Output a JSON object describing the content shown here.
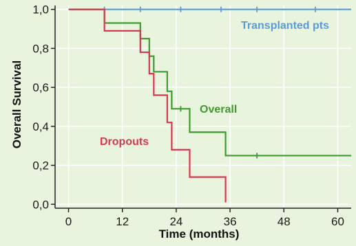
{
  "chart_data": {
    "type": "line",
    "step": true,
    "xlabel": "Time (months)",
    "ylabel": "Overall Survival",
    "xlim": [
      -3,
      63
    ],
    "ylim": [
      -0.02,
      1.02
    ],
    "xticks": [
      0,
      12,
      24,
      36,
      48,
      60
    ],
    "xtick_labels": [
      "0",
      "12",
      "24",
      "36",
      "48",
      "60"
    ],
    "yticks": [
      0.0,
      0.2,
      0.4,
      0.6,
      0.8,
      1.0
    ],
    "ytick_labels": [
      "0,0",
      "0,2",
      "0,4",
      "0,6",
      "0,8",
      "1,0"
    ],
    "grid": true,
    "series": [
      {
        "name": "Transplanted pts",
        "color": "#5b9bd5",
        "points": [
          [
            0,
            1.0
          ],
          [
            63,
            1.0
          ]
        ],
        "censor": [
          [
            8,
            1.0
          ],
          [
            16,
            1.0
          ],
          [
            25,
            1.0
          ],
          [
            34,
            1.0
          ],
          [
            42,
            1.0
          ],
          [
            55,
            1.0
          ]
        ]
      },
      {
        "name": "Overall",
        "color": "#3f9a2d",
        "points": [
          [
            0,
            1.0
          ],
          [
            8,
            1.0
          ],
          [
            8,
            0.93
          ],
          [
            16,
            0.93
          ],
          [
            16,
            0.85
          ],
          [
            18,
            0.85
          ],
          [
            18,
            0.76
          ],
          [
            19,
            0.76
          ],
          [
            19,
            0.68
          ],
          [
            22,
            0.68
          ],
          [
            22,
            0.58
          ],
          [
            23,
            0.58
          ],
          [
            23,
            0.49
          ],
          [
            27,
            0.49
          ],
          [
            27,
            0.37
          ],
          [
            35,
            0.37
          ],
          [
            35,
            0.25
          ],
          [
            63,
            0.25
          ]
        ],
        "censor": [
          [
            25,
            0.49
          ],
          [
            42,
            0.25
          ]
        ]
      },
      {
        "name": "Dropouts",
        "color": "#d9364f",
        "points": [
          [
            0,
            1.0
          ],
          [
            8,
            1.0
          ],
          [
            8,
            0.89
          ],
          [
            16,
            0.89
          ],
          [
            16,
            0.78
          ],
          [
            18,
            0.78
          ],
          [
            18,
            0.67
          ],
          [
            19,
            0.67
          ],
          [
            19,
            0.56
          ],
          [
            22,
            0.56
          ],
          [
            22,
            0.42
          ],
          [
            23,
            0.42
          ],
          [
            23,
            0.28
          ],
          [
            27,
            0.28
          ],
          [
            27,
            0.14
          ],
          [
            35,
            0.14
          ],
          [
            35,
            0.01
          ]
        ],
        "censor": []
      }
    ]
  }
}
